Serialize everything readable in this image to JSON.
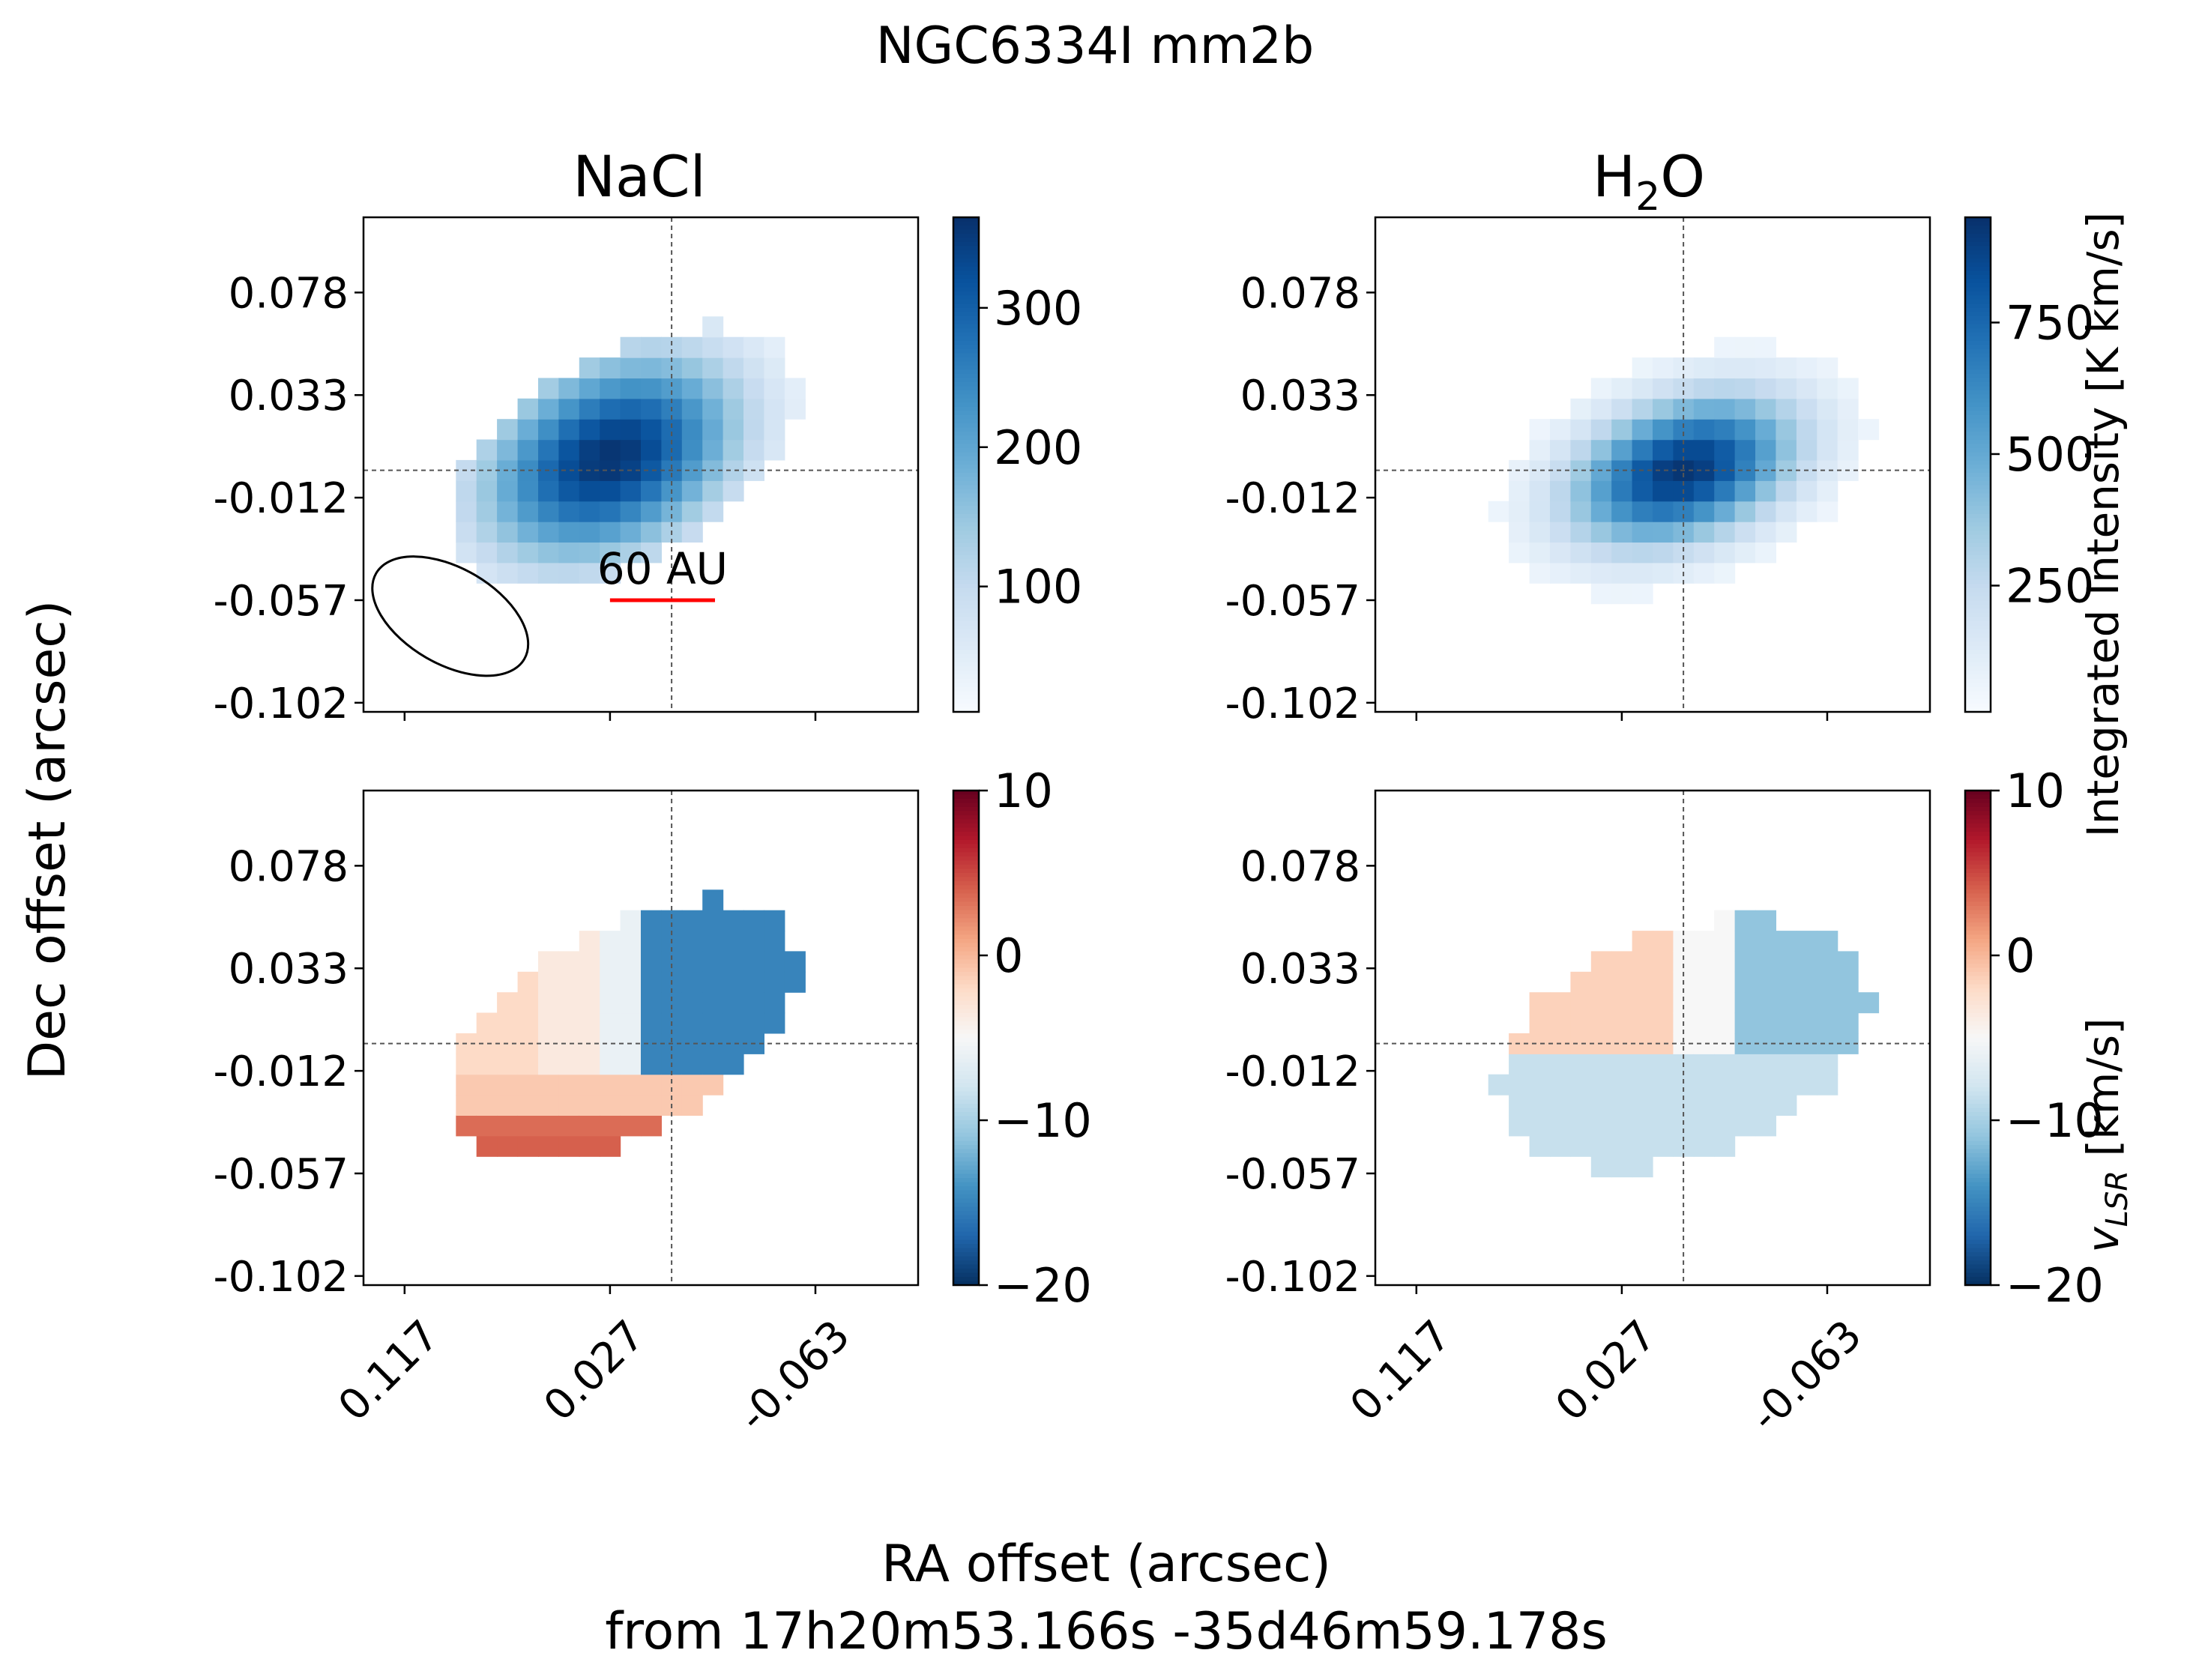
{
  "figure": {
    "title": "NGC6334I mm2b",
    "xlabel": "RA offset (arcsec)",
    "xlabel2": "from 17h20m53.166s -35d46m59.178s",
    "ylabel": "Dec offset (arcsec)"
  },
  "chart_data": {
    "type": "heatmap",
    "x_ticks": [
      "0.117",
      "0.027",
      "-0.063"
    ],
    "y_ticks": [
      "0.078",
      "0.033",
      "-0.012",
      "-0.057",
      "-0.102"
    ],
    "x_range": [
      0.135,
      -0.108
    ],
    "y_range": [
      0.111,
      -0.106
    ],
    "panels": [
      {
        "column_title": "NaCl",
        "quantity": "moment0",
        "cmap": "Blues",
        "vmin": 10,
        "vmax": 365,
        "center": [
          0.027,
          0.0054
        ],
        "sigma": [
          0.043,
          0.029
        ],
        "angle_deg": -28,
        "peak": 360,
        "blob": [
          0.022,
          0.0054,
          0.085,
          0.045,
          -30
        ],
        "beam": {
          "center": [
            0.097,
            -0.064
          ],
          "bmaj_arcsec": 0.075,
          "bmin_arcsec": 0.042,
          "pa_deg": 30
        },
        "scalebar": {
          "label": "60 AU",
          "x0": 0.027,
          "x1": -0.019,
          "y": -0.057
        }
      },
      {
        "column_title": "H2O",
        "quantity": "moment0",
        "cmap": "Blues",
        "vmin": 10,
        "vmax": 950,
        "center": [
          0.0,
          0.0
        ],
        "sigma": [
          0.036,
          0.021
        ],
        "angle_deg": -20,
        "peak": 930,
        "blob": [
          0.0,
          0.0,
          0.085,
          0.05,
          -20
        ]
      },
      {
        "quantity": "moment1",
        "cmap": "RdBu_r",
        "vmin": -20,
        "vmax": 10,
        "blob": [
          0.022,
          0.0054,
          0.085,
          0.045,
          -30
        ],
        "velocity_field": "nacl"
      },
      {
        "quantity": "moment1",
        "cmap": "RdBu_r",
        "vmin": -20,
        "vmax": 10,
        "blob": [
          0.0,
          0.0,
          0.085,
          0.05,
          -20
        ],
        "velocity_field": "h2o"
      }
    ],
    "colorbars": [
      {
        "ticks": [
          100,
          200,
          300
        ],
        "labels": [
          "100",
          "200",
          "300"
        ],
        "vmin": 10,
        "vmax": 365,
        "cmap": "Blues"
      },
      {
        "ticks": [
          250,
          500,
          750
        ],
        "labels": [
          "250",
          "500",
          "750"
        ],
        "vmin": 10,
        "vmax": 950,
        "cmap": "Blues",
        "label": "Integrated Intensity [K km/s]"
      },
      {
        "ticks": [
          10,
          0,
          -10,
          -20
        ],
        "labels": [
          "10",
          "0",
          "−10",
          "−20"
        ],
        "vmin": -20,
        "vmax": 10,
        "cmap": "RdBu_r"
      },
      {
        "ticks": [
          10,
          0,
          -10,
          -20
        ],
        "labels": [
          "10",
          "0",
          "−10",
          "−20"
        ],
        "vmin": -20,
        "vmax": 10,
        "cmap": "RdBu_r",
        "label_main": "v",
        "label_sub": "LSR",
        "label_tail": " [km/s]"
      }
    ]
  },
  "colors": {
    "scalebar": "#ff0000",
    "crosshair": "#555555"
  }
}
